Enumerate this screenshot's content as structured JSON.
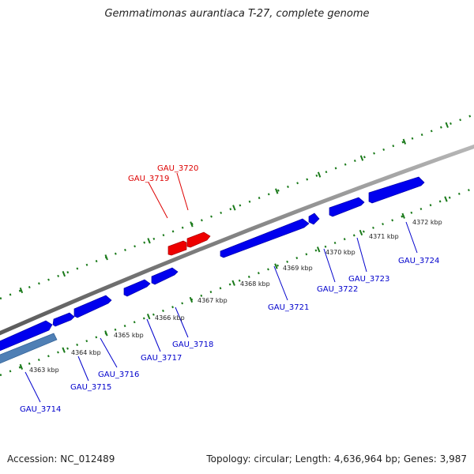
{
  "title": "Gemmatimonas aurantiaca T-27, complete genome",
  "footer": {
    "accession": "Accession: NC_012489",
    "summary": "Topology: circular; Length: 4,636,964 bp; Genes: 3,987"
  },
  "colors": {
    "forward_gene": "#0000ee",
    "highlight_gene": "#ee0000",
    "special_gene": "#4f7fb5",
    "backbone": "#808080",
    "ruler": "#1a7a1a",
    "forward_label": "#0000cc",
    "highlight_label": "#dd0000"
  },
  "highlighted_genes": [
    {
      "id": "GAU_3719"
    },
    {
      "id": "GAU_3720"
    }
  ],
  "genes": [
    {
      "id": "GAU_3714"
    },
    {
      "id": "GAU_3715"
    },
    {
      "id": "GAU_3716"
    },
    {
      "id": "GAU_3717"
    },
    {
      "id": "GAU_3718"
    },
    {
      "id": "GAU_3721"
    },
    {
      "id": "GAU_3722"
    },
    {
      "id": "GAU_3723"
    },
    {
      "id": "GAU_3724"
    }
  ],
  "ticks": [
    "4363 kbp",
    "4364 kbp",
    "4365 kbp",
    "4366 kbp",
    "4367 kbp",
    "4368 kbp",
    "4369 kbp",
    "4370 kbp",
    "4371 kbp",
    "4372 kbp"
  ]
}
